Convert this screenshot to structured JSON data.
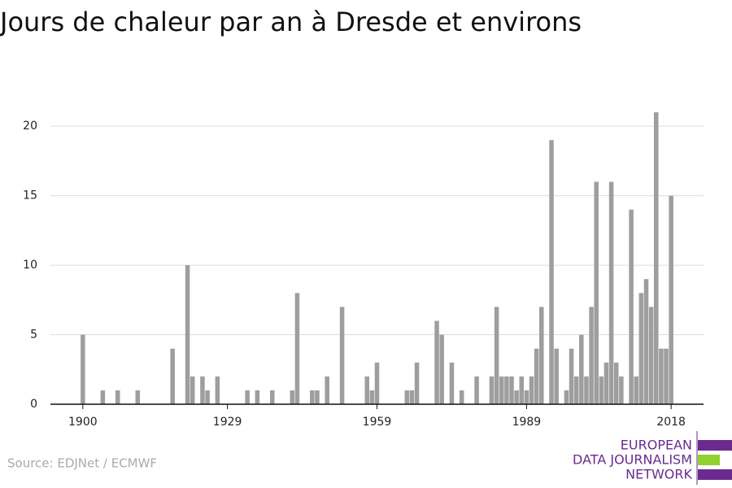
{
  "chart_data": {
    "type": "bar",
    "title": "Jours de chaleur par an à Dresde et environs",
    "source": "Source: EDJNet / ECMWF",
    "logo": [
      "EUROPEAN",
      "DATA JOURNALISM",
      "NETWORK"
    ],
    "color": "#9e9e9e",
    "grid": true,
    "x": [
      1900,
      1901,
      1902,
      1903,
      1904,
      1905,
      1906,
      1907,
      1908,
      1909,
      1910,
      1911,
      1912,
      1913,
      1914,
      1915,
      1916,
      1917,
      1918,
      1919,
      1920,
      1921,
      1922,
      1923,
      1924,
      1925,
      1926,
      1927,
      1928,
      1929,
      1930,
      1931,
      1932,
      1933,
      1934,
      1935,
      1936,
      1937,
      1938,
      1939,
      1940,
      1941,
      1942,
      1943,
      1944,
      1945,
      1946,
      1947,
      1948,
      1949,
      1950,
      1951,
      1952,
      1953,
      1954,
      1955,
      1956,
      1957,
      1958,
      1959,
      1960,
      1961,
      1962,
      1963,
      1964,
      1965,
      1966,
      1967,
      1968,
      1969,
      1970,
      1971,
      1972,
      1973,
      1974,
      1975,
      1976,
      1977,
      1978,
      1979,
      1980,
      1981,
      1982,
      1983,
      1984,
      1985,
      1986,
      1987,
      1988,
      1989,
      1990,
      1991,
      1992,
      1993,
      1994,
      1995,
      1996,
      1997,
      1998,
      1999,
      2000,
      2001,
      2002,
      2003,
      2004,
      2005,
      2006,
      2007,
      2008,
      2009,
      2010,
      2011,
      2012,
      2013,
      2014,
      2015,
      2016,
      2017,
      2018
    ],
    "values": [
      5,
      0,
      0,
      0,
      1,
      0,
      0,
      1,
      0,
      0,
      0,
      1,
      0,
      0,
      0,
      0,
      0,
      0,
      4,
      0,
      0,
      10,
      2,
      0,
      2,
      1,
      0,
      2,
      0,
      0,
      0,
      0,
      0,
      1,
      0,
      1,
      0,
      0,
      1,
      0,
      0,
      0,
      1,
      8,
      0,
      0,
      1,
      1,
      0,
      2,
      0,
      0,
      7,
      0,
      0,
      0,
      0,
      2,
      1,
      3,
      0,
      0,
      0,
      0,
      0,
      1,
      1,
      3,
      0,
      0,
      0,
      6,
      5,
      0,
      3,
      0,
      1,
      0,
      0,
      2,
      0,
      0,
      2,
      7,
      2,
      2,
      2,
      1,
      2,
      1,
      2,
      4,
      7,
      0,
      19,
      4,
      0,
      1,
      4,
      2,
      5,
      2,
      7,
      16,
      2,
      3,
      16,
      3,
      2,
      0,
      14,
      2,
      8,
      9,
      7,
      21,
      4,
      4,
      15
    ],
    "xlim": [
      1893.5,
      2024.5
    ],
    "xticks": [
      1900,
      1929,
      1959,
      1989,
      2018
    ],
    "ylim": [
      0,
      22
    ],
    "yticks": [
      0,
      5,
      10,
      15,
      20
    ]
  }
}
